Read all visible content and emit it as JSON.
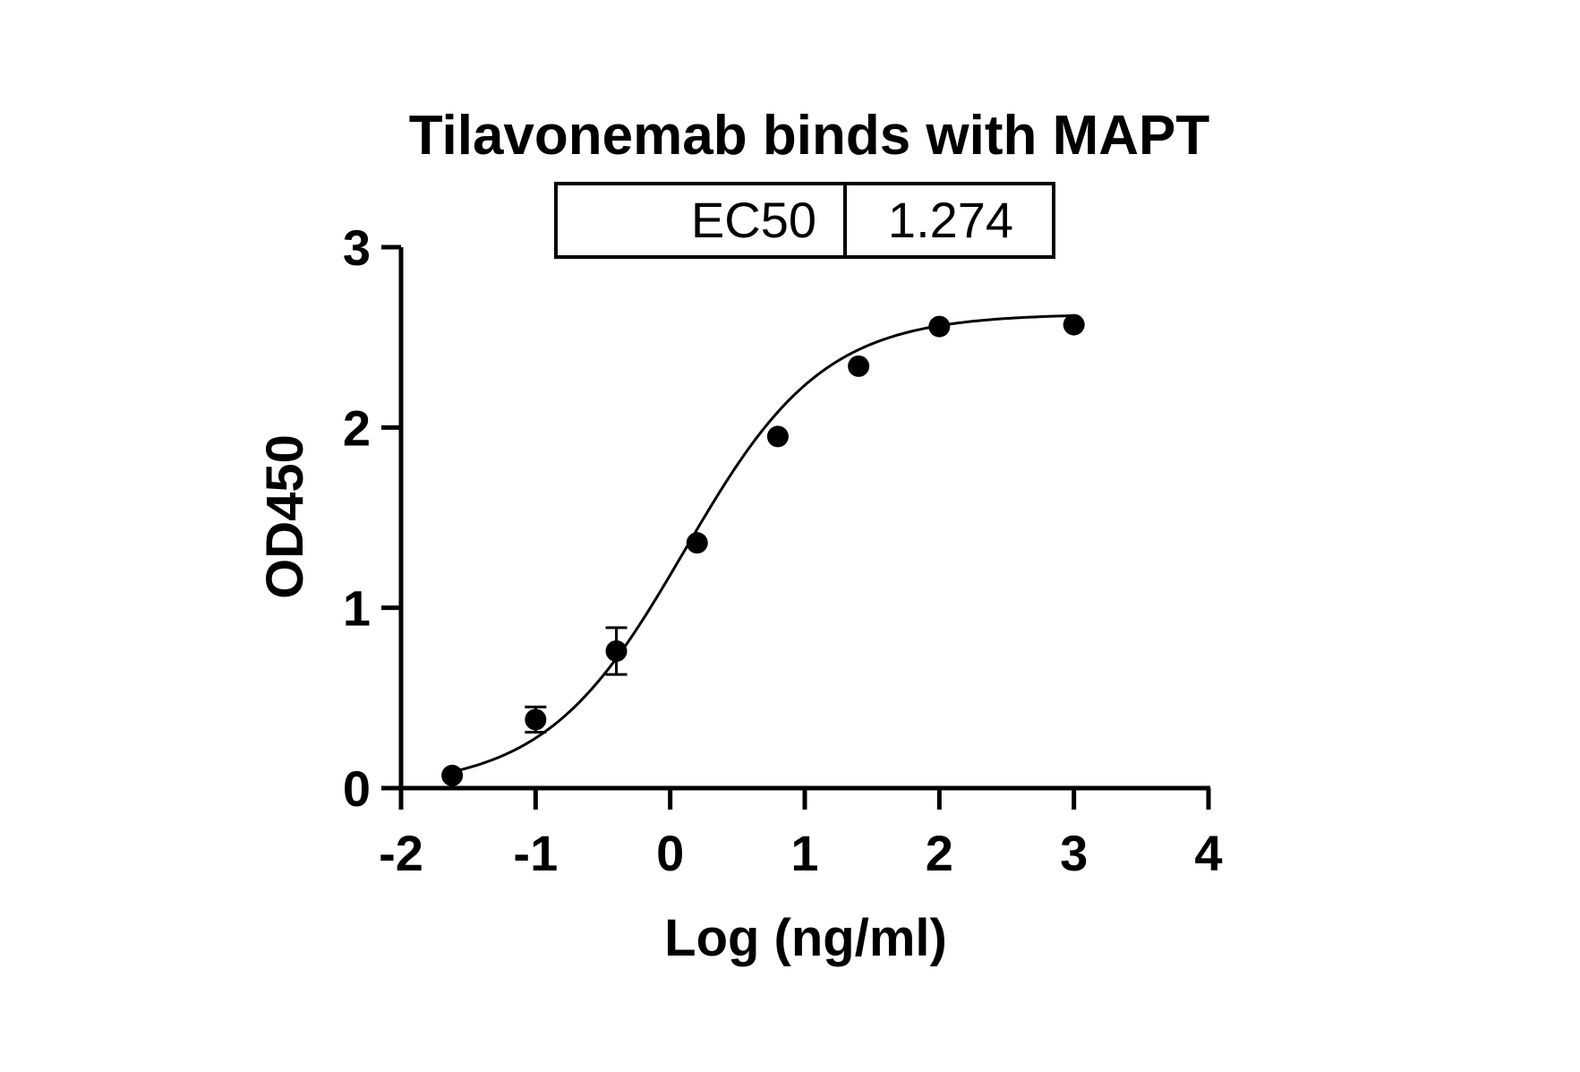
{
  "chart_data": {
    "type": "scatter",
    "title": "Tilavonemab binds with MAPT",
    "xlabel": "Log (ng/ml)",
    "ylabel": "OD450",
    "xlim": [
      -2,
      4
    ],
    "ylim": [
      0,
      3
    ],
    "xticks": [
      "-2",
      "-1",
      "0",
      "1",
      "2",
      "3",
      "4"
    ],
    "yticks": [
      "0",
      "1",
      "2",
      "3"
    ],
    "ec50_table": {
      "label": "EC50",
      "value": "1.274"
    },
    "points": [
      {
        "x": -1.62,
        "y": 0.07,
        "err": 0.0
      },
      {
        "x": -1.0,
        "y": 0.38,
        "err": 0.07
      },
      {
        "x": -0.4,
        "y": 0.76,
        "err": 0.13
      },
      {
        "x": 0.2,
        "y": 1.36,
        "err": 0.0
      },
      {
        "x": 0.8,
        "y": 1.95,
        "err": 0.0
      },
      {
        "x": 1.4,
        "y": 2.34,
        "err": 0.0
      },
      {
        "x": 2.0,
        "y": 2.56,
        "err": 0.0
      },
      {
        "x": 3.0,
        "y": 2.57,
        "err": 0.0
      }
    ],
    "fit_curve": {
      "model": "4PL",
      "bottom": 0.0,
      "top": 2.63,
      "log_ec50": 0.105,
      "hill_slope": 0.84
    },
    "grid": false,
    "legend": "none",
    "colors": {
      "points": "#000000",
      "curve": "#000000",
      "axes": "#000000"
    }
  }
}
